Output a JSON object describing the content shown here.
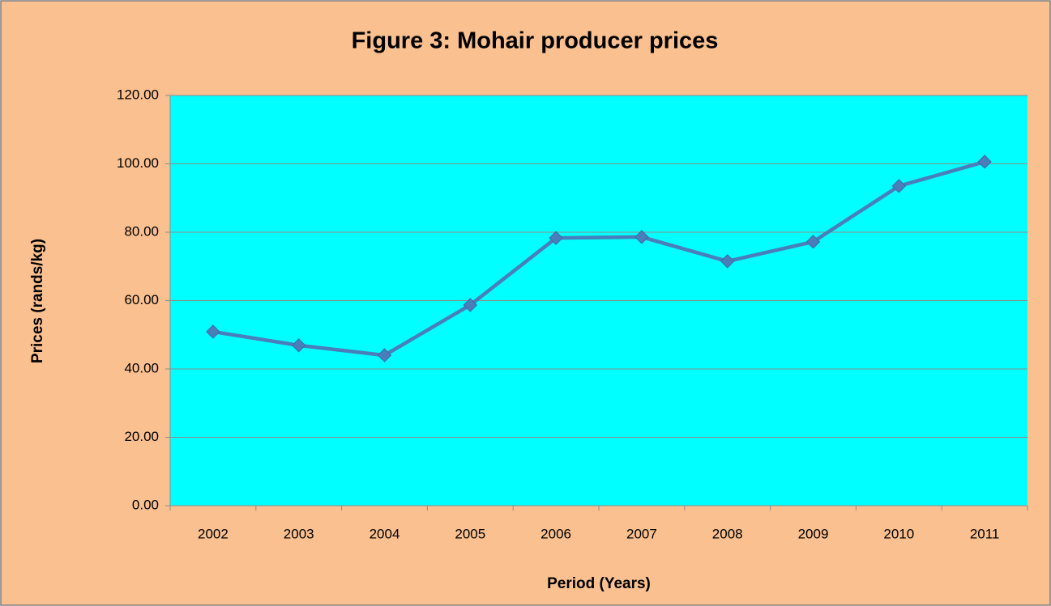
{
  "chart_data": {
    "type": "line",
    "title": "Figure 3: Mohair producer prices",
    "x_label": "Period (Years)",
    "y_label": "Prices (rands/kg)",
    "categories": [
      "2002",
      "2003",
      "2004",
      "2005",
      "2006",
      "2007",
      "2008",
      "2009",
      "2010",
      "2011"
    ],
    "series": [
      {
        "name": "Mohair producer prices",
        "color": "#4a7ebb",
        "values": [
          50.9,
          46.9,
          44.0,
          58.7,
          78.3,
          78.6,
          71.5,
          77.2,
          93.5,
          100.6
        ]
      }
    ],
    "ylim": [
      0,
      120
    ],
    "yticks": [
      {
        "value": 0,
        "label": "0.00"
      },
      {
        "value": 20,
        "label": "20.00"
      },
      {
        "value": 40,
        "label": "40.00"
      },
      {
        "value": 60,
        "label": "60.00"
      },
      {
        "value": 80,
        "label": "80.00"
      },
      {
        "value": 100,
        "label": "100.00"
      },
      {
        "value": 120,
        "label": "120.00"
      }
    ],
    "grid": true
  }
}
